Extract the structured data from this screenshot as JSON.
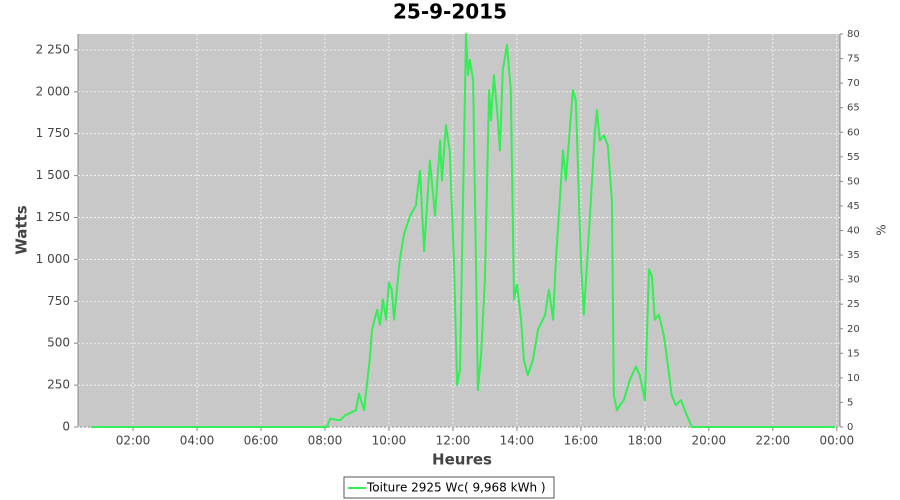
{
  "chart_data": {
    "type": "line",
    "title": "25-9-2015",
    "x_label": "Heures",
    "y_label": "Watts",
    "y2_label": "%",
    "xlim": [
      0.28,
      24.1
    ],
    "ylim": [
      0,
      2345
    ],
    "y2lim": [
      0,
      80
    ],
    "xticks": [
      {
        "value": 2,
        "label": "02:00"
      },
      {
        "value": 4,
        "label": "04:00"
      },
      {
        "value": 6,
        "label": "06:00"
      },
      {
        "value": 8,
        "label": "08:00"
      },
      {
        "value": 10,
        "label": "10:00"
      },
      {
        "value": 12,
        "label": "12:00"
      },
      {
        "value": 14,
        "label": "14:00"
      },
      {
        "value": 16,
        "label": "16:00"
      },
      {
        "value": 18,
        "label": "18:00"
      },
      {
        "value": 20,
        "label": "20:00"
      },
      {
        "value": 22,
        "label": "22:00"
      },
      {
        "value": 24,
        "label": "00:00"
      }
    ],
    "yticks": [
      0,
      250,
      500,
      750,
      {
        "value": 1000,
        "label": "1 000"
      },
      {
        "value": 1250,
        "label": "1 250"
      },
      {
        "value": 1500,
        "label": "1 500"
      },
      {
        "value": 1750,
        "label": "1 750"
      },
      {
        "value": 2000,
        "label": "2 000"
      },
      {
        "value": 2250,
        "label": "2 250"
      }
    ],
    "y2ticks": [
      0,
      5,
      10,
      15,
      20,
      25,
      30,
      35,
      40,
      45,
      50,
      55,
      60,
      65,
      70,
      75,
      80
    ],
    "grid": true,
    "legend_position": "bottom",
    "x": [
      0.69,
      8.06,
      8.16,
      8.47,
      8.63,
      8.97,
      9.06,
      9.22,
      9.4,
      9.47,
      9.63,
      9.72,
      9.81,
      9.91,
      10.0,
      10.09,
      10.16,
      10.25,
      10.34,
      10.47,
      10.66,
      10.84,
      10.97,
      11.1,
      11.28,
      11.44,
      11.6,
      11.66,
      11.78,
      11.9,
      12.03,
      12.13,
      12.22,
      12.41,
      12.47,
      12.53,
      12.63,
      12.69,
      12.78,
      12.88,
      13.0,
      13.13,
      13.19,
      13.28,
      13.38,
      13.47,
      13.56,
      13.69,
      13.81,
      13.91,
      14.0,
      14.13,
      14.22,
      14.34,
      14.5,
      14.66,
      14.88,
      15.0,
      15.13,
      15.22,
      15.34,
      15.44,
      15.53,
      15.63,
      15.75,
      15.84,
      16.0,
      16.09,
      16.22,
      16.31,
      16.44,
      16.5,
      16.59,
      16.72,
      16.84,
      16.97,
      17.03,
      17.13,
      17.22,
      17.34,
      17.53,
      17.72,
      17.84,
      18.0,
      18.13,
      18.22,
      18.31,
      18.44,
      18.59,
      18.72,
      18.84,
      18.97,
      19.13,
      19.31,
      19.47,
      23.94
    ],
    "series": [
      {
        "name": "Toiture 2925 Wc( 9,968 kWh )",
        "color": "#33ee55",
        "values": [
          0,
          0,
          50,
          40,
          70,
          100,
          200,
          100,
          400,
          580,
          700,
          610,
          760,
          640,
          860,
          820,
          640,
          820,
          1000,
          1150,
          1260,
          1320,
          1530,
          1050,
          1590,
          1260,
          1710,
          1470,
          1800,
          1650,
          1000,
          250,
          340,
          2345,
          2100,
          2190,
          2070,
          1350,
          220,
          430,
          880,
          2010,
          1830,
          2100,
          1890,
          1650,
          2130,
          2280,
          2010,
          760,
          850,
          640,
          400,
          310,
          400,
          580,
          670,
          820,
          640,
          1000,
          1350,
          1650,
          1470,
          1710,
          2010,
          1950,
          1000,
          670,
          1060,
          1350,
          1770,
          1890,
          1710,
          1740,
          1680,
          1350,
          190,
          100,
          130,
          160,
          280,
          360,
          310,
          160,
          940,
          900,
          640,
          670,
          550,
          370,
          190,
          130,
          160,
          70,
          0,
          0
        ]
      }
    ]
  }
}
